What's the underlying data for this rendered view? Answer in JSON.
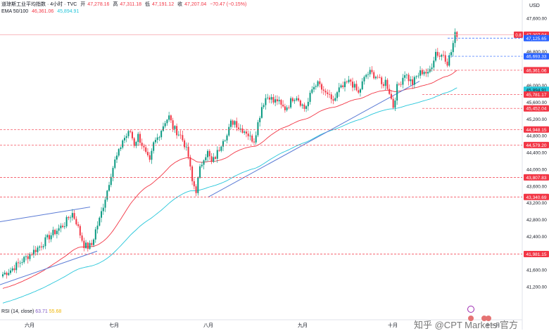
{
  "header": {
    "symbol": "道琼斯工业平均指数 · 4小时 · TVC",
    "o_label": "开",
    "o": "47,278.16",
    "h_label": "高",
    "h": "47,311.18",
    "l_label": "低",
    "l": "47,191.12",
    "c_label": "收",
    "c": "47,207.04",
    "chg": "−70.47 (−0.15%)",
    "ema_label": "EMA 50/100",
    "ema50": "46,361.06",
    "ema100": "45,894.91"
  },
  "rsi": {
    "label": "RSI (14, close)",
    "v1": "63.71",
    "v2": "55.68"
  },
  "currency": "USD",
  "watermark": "知乎 @CPT Markets 官方",
  "colors": {
    "up": "#089981",
    "down": "#f23645",
    "ema50": "#f23645",
    "ema100": "#26c6da",
    "trend": "#5b7bd5"
  },
  "chart_data": {
    "type": "candlestick",
    "x_labels": [
      "六月",
      "七月",
      "八月",
      "九月",
      "十月",
      "十一月"
    ],
    "y_ticks": [
      41200,
      41600,
      42000,
      42400,
      42800,
      43200,
      43600,
      44000,
      44400,
      44800,
      45200,
      45600,
      46000,
      46400,
      46800,
      47200,
      47600
    ],
    "ylim": [
      40800,
      47800
    ],
    "price_labels": [
      {
        "value": 47207.04,
        "text": "47,207.04",
        "prefix": "0.8",
        "style": "price"
      },
      {
        "value": 47125.65,
        "text": "47,125.65",
        "style": "blue"
      },
      {
        "value": 46693.33,
        "text": "46,693.33",
        "style": "blue"
      },
      {
        "value": 46361.06,
        "text": "46,361.06",
        "style": "red"
      },
      {
        "value": 45894.91,
        "text": "45,894.91",
        "style": "cyan"
      },
      {
        "value": 45781.17,
        "text": "45,781.17",
        "style": "red"
      },
      {
        "value": 45452.04,
        "text": "45,452.04",
        "style": "red"
      },
      {
        "value": 44948.15,
        "text": "44,948.15",
        "style": "red"
      },
      {
        "value": 44579.2,
        "text": "44,579.20",
        "style": "red"
      },
      {
        "value": 43807.83,
        "text": "43,807.83",
        "style": "red"
      },
      {
        "value": 43340.69,
        "text": "43,340.69",
        "style": "red"
      },
      {
        "value": 41981.15,
        "text": "41,981.15",
        "style": "red"
      }
    ],
    "ohlc_anchors": [
      [
        0,
        41500
      ],
      [
        4,
        41600
      ],
      [
        8,
        41750
      ],
      [
        12,
        41900
      ],
      [
        16,
        42050
      ],
      [
        20,
        42200
      ],
      [
        24,
        42400
      ],
      [
        28,
        42550
      ],
      [
        32,
        42700
      ],
      [
        34,
        42850
      ],
      [
        36,
        42950
      ],
      [
        38,
        42750
      ],
      [
        40,
        42450
      ],
      [
        42,
        42200
      ],
      [
        44,
        42150
      ],
      [
        46,
        42200
      ],
      [
        48,
        42550
      ],
      [
        50,
        42800
      ],
      [
        52,
        43150
      ],
      [
        54,
        43500
      ],
      [
        56,
        43900
      ],
      [
        58,
        44200
      ],
      [
        60,
        44400
      ],
      [
        62,
        44700
      ],
      [
        64,
        44800
      ],
      [
        66,
        44900
      ],
      [
        68,
        44600
      ],
      [
        70,
        44800
      ],
      [
        72,
        44600
      ],
      [
        74,
        44350
      ],
      [
        76,
        44150
      ],
      [
        78,
        44600
      ],
      [
        80,
        44750
      ],
      [
        82,
        44950
      ],
      [
        84,
        45150
      ],
      [
        86,
        45250
      ],
      [
        88,
        45000
      ],
      [
        90,
        44900
      ],
      [
        92,
        44800
      ],
      [
        94,
        44600
      ],
      [
        96,
        44300
      ],
      [
        98,
        43700
      ],
      [
        100,
        43500
      ],
      [
        102,
        44000
      ],
      [
        104,
        44300
      ],
      [
        106,
        44400
      ],
      [
        108,
        44150
      ],
      [
        110,
        44300
      ],
      [
        112,
        44500
      ],
      [
        114,
        44750
      ],
      [
        116,
        44800
      ],
      [
        118,
        45100
      ],
      [
        120,
        45150
      ],
      [
        122,
        45000
      ],
      [
        124,
        44950
      ],
      [
        126,
        44900
      ],
      [
        128,
        44750
      ],
      [
        130,
        44700
      ],
      [
        132,
        45100
      ],
      [
        134,
        45500
      ],
      [
        136,
        45700
      ],
      [
        138,
        45750
      ],
      [
        140,
        45600
      ],
      [
        142,
        45650
      ],
      [
        144,
        45500
      ],
      [
        146,
        45450
      ],
      [
        148,
        45550
      ],
      [
        150,
        45700
      ],
      [
        152,
        45750
      ],
      [
        154,
        45600
      ],
      [
        156,
        45450
      ],
      [
        158,
        45600
      ],
      [
        160,
        45900
      ],
      [
        162,
        46050
      ],
      [
        164,
        46000
      ],
      [
        166,
        45800
      ],
      [
        168,
        45800
      ],
      [
        170,
        45600
      ],
      [
        172,
        45700
      ],
      [
        174,
        45900
      ],
      [
        176,
        45950
      ],
      [
        178,
        46050
      ],
      [
        180,
        46100
      ],
      [
        182,
        45950
      ],
      [
        184,
        45800
      ],
      [
        186,
        46050
      ],
      [
        188,
        46250
      ],
      [
        190,
        46300
      ],
      [
        192,
        46250
      ],
      [
        194,
        46200
      ],
      [
        196,
        46000
      ],
      [
        198,
        46100
      ],
      [
        200,
        45850
      ],
      [
        202,
        45500
      ],
      [
        204,
        45950
      ],
      [
        206,
        46100
      ],
      [
        208,
        46300
      ],
      [
        210,
        46150
      ],
      [
        212,
        46050
      ],
      [
        214,
        46200
      ],
      [
        216,
        46300
      ],
      [
        218,
        46350
      ],
      [
        220,
        46250
      ],
      [
        222,
        46500
      ],
      [
        224,
        46800
      ],
      [
        226,
        46700
      ],
      [
        228,
        46750
      ],
      [
        230,
        46550
      ],
      [
        232,
        46800
      ],
      [
        234,
        47200
      ],
      [
        236,
        47250
      ]
    ],
    "candle_count": 236
  }
}
